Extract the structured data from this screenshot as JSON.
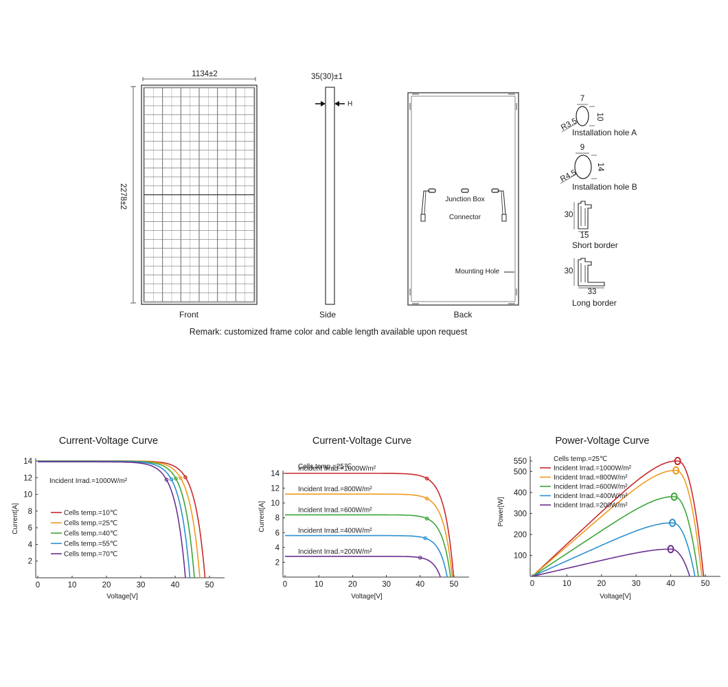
{
  "drawing": {
    "front": {
      "width_label": "1134±2",
      "height_label": "2278±2",
      "caption": "Front"
    },
    "side": {
      "thickness_label": "35(30)±1",
      "h_label": "H",
      "caption": "Side"
    },
    "back": {
      "junction_box_label": "Junction Box",
      "connector_label": "Connector",
      "mounting_hole_label": "Mounting Hole",
      "caption": "Back"
    },
    "details": {
      "hole_a": {
        "w": "7",
        "h": "10",
        "r": "R3.5",
        "caption": "Installation hole A"
      },
      "hole_b": {
        "w": "9",
        "h": "14",
        "r": "R4.5",
        "caption": "Installation hole B"
      },
      "short_border": {
        "h": "30",
        "w": "15",
        "caption": "Short border"
      },
      "long_border": {
        "h": "30",
        "w": "33",
        "caption": "Long border"
      }
    },
    "remark": "Remark: customized frame color and cable length available upon request"
  },
  "chart_data": [
    {
      "type": "line",
      "title": "Current-Voltage Curve",
      "xlabel": "Voltage[V]",
      "ylabel": "Current[A]",
      "xlim": [
        0,
        50
      ],
      "ylim": [
        0,
        14
      ],
      "xticks": [
        "0",
        "10",
        "20",
        "30",
        "40",
        "50"
      ],
      "yticks": [
        "2",
        "4",
        "6",
        "8",
        "10",
        "12",
        "14"
      ],
      "annotation": "Incident Irrad.=1000W/m²",
      "series": [
        {
          "name": "Cells temp.=10℃",
          "color": "#c8282a",
          "isc": 14.0,
          "voc": 48.7,
          "vmp": 43.0,
          "imp": 12.05
        },
        {
          "name": "Cells temp.=25℃",
          "color": "#ee9a1e",
          "isc": 14.0,
          "voc": 47.2,
          "vmp": 41.6,
          "imp": 11.95
        },
        {
          "name": "Cells temp.=40℃",
          "color": "#3aa537",
          "isc": 13.98,
          "voc": 45.6,
          "vmp": 40.2,
          "imp": 11.9
        },
        {
          "name": "Cells temp.=55℃",
          "color": "#2b8fd0",
          "isc": 13.95,
          "voc": 44.3,
          "vmp": 38.9,
          "imp": 11.8
        },
        {
          "name": "Cells temp.=70℃",
          "color": "#6a2e8e",
          "isc": 13.9,
          "voc": 43.0,
          "vmp": 37.5,
          "imp": 11.75
        }
      ]
    },
    {
      "type": "line",
      "title": "Current-Voltage Curve",
      "xlabel": "Voltage[V]",
      "ylabel": "Current[A]",
      "xlim": [
        0,
        50
      ],
      "ylim": [
        0,
        14
      ],
      "xticks": [
        "0",
        "10",
        "20",
        "30",
        "40",
        "50"
      ],
      "yticks": [
        "2",
        "4",
        "6",
        "8",
        "10",
        "12",
        "14"
      ],
      "annotation": "Cells temp.=25℃",
      "series": [
        {
          "name": "Incident Irrad.=1000W/m²",
          "color": "#c8282a",
          "isc": 14.0,
          "voc": 49.9,
          "vmp": 42.0,
          "imp": 13.3
        },
        {
          "name": "Incident Irrad.=800W/m²",
          "color": "#ee9a1e",
          "isc": 11.2,
          "voc": 49.5,
          "vmp": 42.0,
          "imp": 10.6
        },
        {
          "name": "Incident Irrad.=600W/m²",
          "color": "#3aa537",
          "isc": 8.4,
          "voc": 49.0,
          "vmp": 42.0,
          "imp": 7.9
        },
        {
          "name": "Incident Irrad.=400W/m²",
          "color": "#2b8fd0",
          "isc": 5.6,
          "voc": 48.0,
          "vmp": 41.5,
          "imp": 5.25
        },
        {
          "name": "Incident Irrad.=200W/m²",
          "color": "#6a2e8e",
          "isc": 2.8,
          "voc": 46.0,
          "vmp": 40.0,
          "imp": 2.62
        }
      ]
    },
    {
      "type": "line",
      "title": "Power-Voltage Curve",
      "xlabel": "Voltage[V]",
      "ylabel": "Power[W]",
      "xlim": [
        0,
        50
      ],
      "ylim": [
        0,
        560
      ],
      "xticks": [
        "0",
        "10",
        "20",
        "30",
        "40",
        "50"
      ],
      "yticks": [
        "100",
        "200",
        "300",
        "400",
        "500",
        "550"
      ],
      "annotation": "Cells temp.=25℃",
      "series": [
        {
          "name": "Incident Irrad.=1000W/m²",
          "color": "#c8282a",
          "vmp": 42.0,
          "pmax": 550,
          "voc": 49.5
        },
        {
          "name": "Incident Irrad.=800W/m²",
          "color": "#ee9a1e",
          "vmp": 41.5,
          "pmax": 505,
          "voc": 49.0
        },
        {
          "name": "Incident Irrad.=600W/m²",
          "color": "#3aa537",
          "vmp": 41.0,
          "pmax": 380,
          "voc": 48.0
        },
        {
          "name": "Incident Irrad.=400W/m²",
          "color": "#2b8fd0",
          "vmp": 40.5,
          "pmax": 255,
          "voc": 47.0
        },
        {
          "name": "Incident Irrad.=200W/m²",
          "color": "#6a2e8e",
          "vmp": 40.0,
          "pmax": 130,
          "voc": 45.5
        }
      ]
    }
  ]
}
